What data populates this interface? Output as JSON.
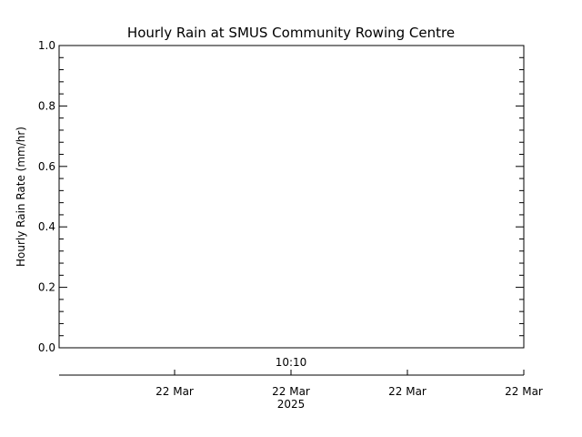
{
  "chart_data": {
    "type": "line",
    "title": "Hourly Rain at SMUS Community Rowing Centre",
    "ylabel": "Hourly Rain Rate (mm/hr)",
    "xlabel": "",
    "ylim": [
      0.0,
      1.0
    ],
    "y_ticks": [
      "0.0",
      "0.2",
      "0.4",
      "0.6",
      "0.8",
      "1.0"
    ],
    "time_marker_label": "10:10",
    "x_ticks": [
      "22 Mar",
      "22 Mar",
      "22 Mar",
      "22 Mar"
    ],
    "x_year_label": "2025",
    "series": [],
    "grid": false,
    "legend": "none"
  }
}
